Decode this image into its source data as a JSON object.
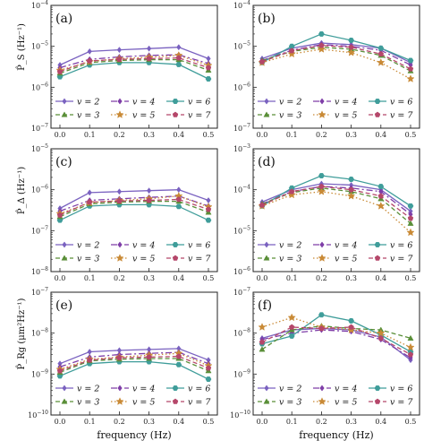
{
  "figure": {
    "xlabel": "frequency (Hz)",
    "x_ticks": [
      "0.0",
      "0.1",
      "0.2",
      "0.3",
      "0.4",
      "0.5"
    ]
  },
  "styles": {
    "v2": {
      "label": "v = 2",
      "color": "#7a62c0",
      "marker": "diamond",
      "dash": "none"
    },
    "v3": {
      "label": "v = 3",
      "color": "#5a8f38",
      "marker": "triangle",
      "dash": "5,3"
    },
    "v4": {
      "label": "v = 4",
      "color": "#7f3ea8",
      "marker": "diamond",
      "dash": "7,3,2,3"
    },
    "v5": {
      "label": "v = 5",
      "color": "#c98a36",
      "marker": "star",
      "dash": "1.5,2.5"
    },
    "v6": {
      "label": "v = 6",
      "color": "#3f9d9a",
      "marker": "hexagon",
      "dash": "none"
    },
    "v7": {
      "label": "v = 7",
      "color": "#b5476a",
      "marker": "pentagon",
      "dash": "5,3"
    }
  },
  "chart_data": [
    {
      "panel": "(a)",
      "type": "line",
      "ylabel": "P̂_S (Hz⁻¹)",
      "yscale": "log",
      "ylim_exp": [
        -7,
        -4
      ],
      "x": [
        0.0,
        0.1,
        0.2,
        0.3,
        0.4,
        0.5
      ],
      "series": [
        {
          "name": "v = 2",
          "style": "v2",
          "values": [
            3.5e-06,
            7.5e-06,
            8.2e-06,
            8.8e-06,
            9.5e-06,
            5e-06
          ]
        },
        {
          "name": "v = 4",
          "style": "v4",
          "values": [
            3e-06,
            4.8e-06,
            5.5e-06,
            6e-06,
            6.2e-06,
            3.8e-06
          ]
        },
        {
          "name": "v = 6",
          "style": "v6",
          "values": [
            1.8e-06,
            3.5e-06,
            4e-06,
            4e-06,
            3.6e-06,
            1.6e-06
          ]
        },
        {
          "name": "v = 3",
          "style": "v3",
          "values": [
            2.2e-06,
            4e-06,
            4.5e-06,
            4.7e-06,
            4.7e-06,
            2.6e-06
          ]
        },
        {
          "name": "v = 5",
          "style": "v5",
          "values": [
            2.6e-06,
            4.2e-06,
            5e-06,
            5.4e-06,
            6e-06,
            3.4e-06
          ]
        },
        {
          "name": "v = 7",
          "style": "v7",
          "values": [
            2.4e-06,
            4.4e-06,
            4.8e-06,
            5e-06,
            5.2e-06,
            3e-06
          ]
        }
      ]
    },
    {
      "panel": "(b)",
      "type": "line",
      "ylabel": "",
      "yscale": "log",
      "ylim_exp": [
        -7,
        -4
      ],
      "x": [
        0.0,
        0.1,
        0.2,
        0.3,
        0.4,
        0.5
      ],
      "series": [
        {
          "name": "v = 2",
          "style": "v2",
          "values": [
            5e-06,
            9e-06,
            1.2e-05,
            1.1e-05,
            9e-06,
            4e-06
          ]
        },
        {
          "name": "v = 4",
          "style": "v4",
          "values": [
            4.5e-06,
            8e-06,
            1.1e-05,
            1e-05,
            8e-06,
            3.5e-06
          ]
        },
        {
          "name": "v = 6",
          "style": "v6",
          "values": [
            4e-06,
            1e-05,
            2e-05,
            1.4e-05,
            9e-06,
            4.5e-06
          ]
        },
        {
          "name": "v = 3",
          "style": "v3",
          "values": [
            4.5e-06,
            7.5e-06,
            9.5e-06,
            8.5e-06,
            6e-06,
            2.5e-06
          ]
        },
        {
          "name": "v = 5",
          "style": "v5",
          "values": [
            4e-06,
            6.5e-06,
            8.5e-06,
            7e-06,
            4e-06,
            1.6e-06
          ]
        },
        {
          "name": "v = 7",
          "style": "v7",
          "values": [
            4.2e-06,
            7.8e-06,
            1.05e-05,
            9.5e-06,
            6.5e-06,
            2.8e-06
          ]
        }
      ]
    },
    {
      "panel": "(c)",
      "type": "line",
      "ylabel": "P̂_Δ (Hz⁻¹)",
      "yscale": "log",
      "ylim_exp": [
        -8,
        -5
      ],
      "x": [
        0.0,
        0.1,
        0.2,
        0.3,
        0.4,
        0.5
      ],
      "series": [
        {
          "name": "v = 2",
          "style": "v2",
          "values": [
            3.5e-07,
            8.5e-07,
            9e-07,
            9.5e-07,
            1e-06,
            5.5e-07
          ]
        },
        {
          "name": "v = 4",
          "style": "v4",
          "values": [
            3e-07,
            5.5e-07,
            6e-07,
            6.5e-07,
            7e-07,
            4e-07
          ]
        },
        {
          "name": "v = 6",
          "style": "v6",
          "values": [
            1.8e-07,
            4e-07,
            4.3e-07,
            4.3e-07,
            3.9e-07,
            1.8e-07
          ]
        },
        {
          "name": "v = 3",
          "style": "v3",
          "values": [
            2.2e-07,
            4.5e-07,
            5e-07,
            5.2e-07,
            5.2e-07,
            2.8e-07
          ]
        },
        {
          "name": "v = 5",
          "style": "v5",
          "values": [
            2.6e-07,
            4.8e-07,
            5.5e-07,
            6e-07,
            7e-07,
            3.8e-07
          ]
        },
        {
          "name": "v = 7",
          "style": "v7",
          "values": [
            2.4e-07,
            5e-07,
            5.3e-07,
            5.5e-07,
            5.8e-07,
            3.3e-07
          ]
        }
      ]
    },
    {
      "panel": "(d)",
      "type": "line",
      "ylabel": "",
      "yscale": "log",
      "ylim_exp": [
        -6,
        -3
      ],
      "x": [
        0.0,
        0.1,
        0.2,
        0.3,
        0.4,
        0.5
      ],
      "series": [
        {
          "name": "v = 2",
          "style": "v2",
          "values": [
            5e-05,
            0.0001,
            0.00014,
            0.00013,
            0.0001,
            3e-05
          ]
        },
        {
          "name": "v = 4",
          "style": "v4",
          "values": [
            4.5e-05,
            9e-05,
            0.00012,
            0.00011,
            9e-05,
            2.5e-05
          ]
        },
        {
          "name": "v = 6",
          "style": "v6",
          "values": [
            4e-05,
            0.00011,
            0.00022,
            0.00018,
            0.00012,
            4e-05
          ]
        },
        {
          "name": "v = 3",
          "style": "v3",
          "values": [
            4.5e-05,
            8.5e-05,
            0.00011,
            9e-05,
            6e-05,
            1.5e-05
          ]
        },
        {
          "name": "v = 5",
          "style": "v5",
          "values": [
            4e-05,
            7.5e-05,
            9e-05,
            7e-05,
            4e-05,
            9e-06
          ]
        },
        {
          "name": "v = 7",
          "style": "v7",
          "values": [
            4.2e-05,
            9e-05,
            0.00012,
            0.0001,
            7e-05,
            2e-05
          ]
        }
      ]
    },
    {
      "panel": "(e)",
      "type": "line",
      "ylabel": "P̂_Rg (μm²Hz⁻¹)",
      "yscale": "log",
      "ylim_exp": [
        -10,
        -7
      ],
      "x": [
        0.0,
        0.1,
        0.2,
        0.3,
        0.4,
        0.5
      ],
      "series": [
        {
          "name": "v = 2",
          "style": "v2",
          "values": [
            1.8e-09,
            3.5e-09,
            3.8e-09,
            4e-09,
            4.2e-09,
            2.2e-09
          ]
        },
        {
          "name": "v = 4",
          "style": "v4",
          "values": [
            1.5e-09,
            2.6e-09,
            3e-09,
            3.2e-09,
            3.4e-09,
            1.8e-09
          ]
        },
        {
          "name": "v = 6",
          "style": "v6",
          "values": [
            9e-10,
            1.8e-09,
            2e-09,
            2e-09,
            1.7e-09,
            7.5e-10
          ]
        },
        {
          "name": "v = 3",
          "style": "v3",
          "values": [
            1.1e-09,
            2.1e-09,
            2.3e-09,
            2.4e-09,
            2.4e-09,
            1.2e-09
          ]
        },
        {
          "name": "v = 5",
          "style": "v5",
          "values": [
            1.3e-09,
            2.3e-09,
            2.6e-09,
            2.9e-09,
            3.2e-09,
            1.6e-09
          ]
        },
        {
          "name": "v = 7",
          "style": "v7",
          "values": [
            1.2e-09,
            2.2e-09,
            2.5e-09,
            2.6e-09,
            2.7e-09,
            1.4e-09
          ]
        }
      ]
    },
    {
      "panel": "(f)",
      "type": "line",
      "ylabel": "",
      "yscale": "log",
      "ylim_exp": [
        -10,
        -7
      ],
      "x": [
        0.0,
        0.1,
        0.2,
        0.3,
        0.4,
        0.5
      ],
      "series": [
        {
          "name": "v = 2",
          "style": "v2",
          "values": [
            7.5e-09,
            1.2e-08,
            1.3e-08,
            1.2e-08,
            8e-09,
            2.2e-09
          ]
        },
        {
          "name": "v = 4",
          "style": "v4",
          "values": [
            7e-09,
            1e-08,
            1.2e-08,
            1.1e-08,
            7e-09,
            2.5e-09
          ]
        },
        {
          "name": "v = 6",
          "style": "v6",
          "values": [
            5.5e-09,
            8.5e-09,
            2.8e-08,
            2e-08,
            9e-09,
            3.5e-09
          ]
        },
        {
          "name": "v = 3",
          "style": "v3",
          "values": [
            4e-09,
            1.2e-08,
            1.5e-08,
            1.3e-08,
            1.2e-08,
            7.5e-09
          ]
        },
        {
          "name": "v = 5",
          "style": "v5",
          "values": [
            1.4e-08,
            2.4e-08,
            1.4e-08,
            1.2e-08,
            1e-08,
            4.5e-09
          ]
        },
        {
          "name": "v = 7",
          "style": "v7",
          "values": [
            6e-09,
            1.4e-08,
            1.3e-08,
            1.4e-08,
            7.5e-09,
            3e-09
          ]
        }
      ]
    }
  ]
}
